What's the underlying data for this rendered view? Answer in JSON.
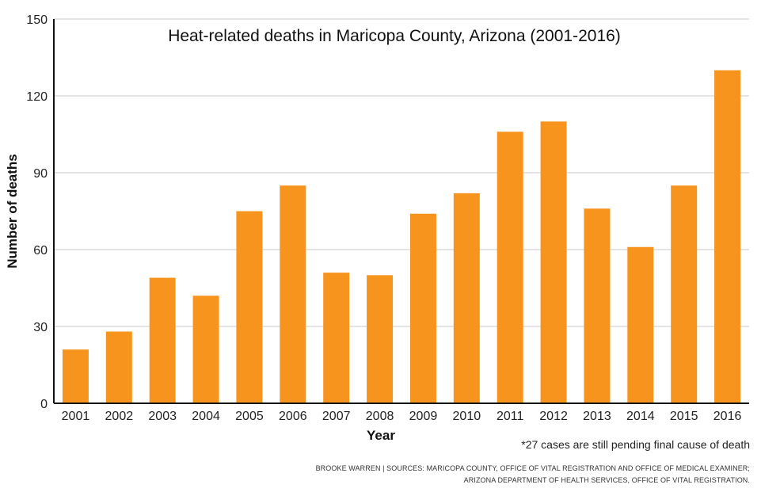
{
  "chart_data": {
    "type": "bar",
    "title": "Heat-related deaths in Maricopa County, Arizona (2001-2016)",
    "xlabel": "Year",
    "ylabel": "Number of deaths",
    "categories": [
      "2001",
      "2002",
      "2003",
      "2004",
      "2005",
      "2006",
      "2007",
      "2008",
      "2009",
      "2010",
      "2011",
      "2012",
      "2013",
      "2014",
      "2015",
      "2016"
    ],
    "values": [
      21,
      28,
      49,
      42,
      75,
      85,
      51,
      50,
      74,
      82,
      106,
      110,
      76,
      61,
      85,
      130
    ],
    "ylim": [
      0,
      150
    ],
    "yticks": [
      0,
      30,
      60,
      90,
      120,
      150
    ],
    "grid": true,
    "bar_color": "#f7941d"
  },
  "footnote": "*27 cases are still pending final cause of death",
  "credit": {
    "line1": "BROOKE WARREN | SOURCES: MARICOPA COUNTY, OFFICE OF VITAL REGISTRATION AND OFFICE OF MEDICAL EXAMINER;",
    "line2": "ARIZONA DEPARTMENT OF HEALTH SERVICES, OFFICE OF VITAL REGISTRATION."
  }
}
